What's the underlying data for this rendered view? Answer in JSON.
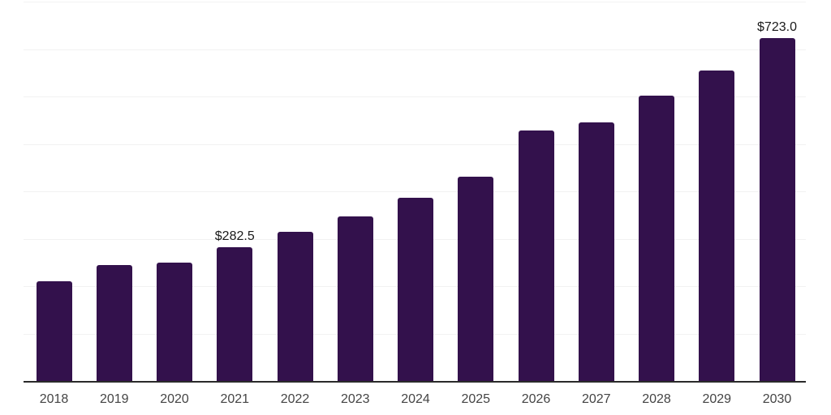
{
  "chart_data": {
    "type": "bar",
    "title": "",
    "xlabel": "",
    "ylabel": "",
    "categories": [
      "2018",
      "2019",
      "2020",
      "2021",
      "2022",
      "2023",
      "2024",
      "2025",
      "2026",
      "2027",
      "2028",
      "2029",
      "2030"
    ],
    "values": [
      210,
      244,
      250,
      282.5,
      315,
      347.5,
      386,
      430,
      528,
      546,
      602,
      655,
      723
    ],
    "data_labels": [
      "",
      "",
      "",
      "$282.5",
      "",
      "",
      "",
      "",
      "",
      "",
      "",
      "",
      "$723.0"
    ],
    "ylim": [
      0,
      800
    ],
    "grid": "horizontal",
    "grid_interval": 100,
    "y_tick_labels_visible": false,
    "legend": "none",
    "colors": {
      "bar": "#33114c",
      "grid_line": "#f2f2f2",
      "axis_line": "#2a2a2a",
      "tick_label": "#444444",
      "data_label": "#1a1a1a",
      "background": "#ffffff"
    }
  }
}
